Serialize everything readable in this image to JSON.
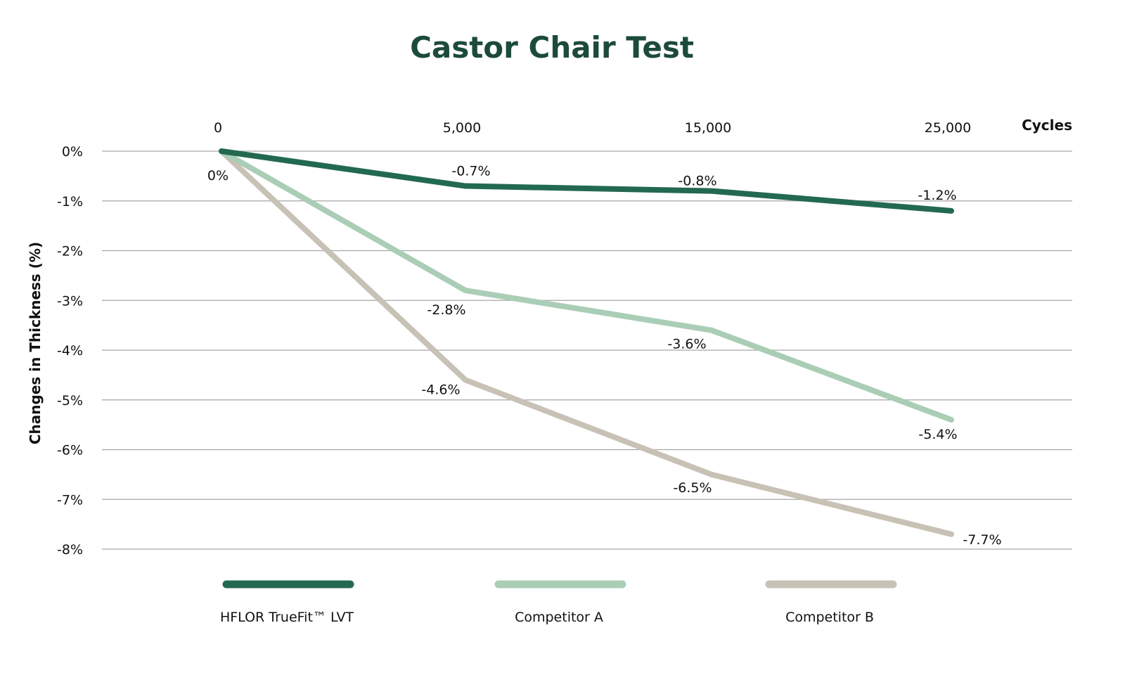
{
  "chart_data": {
    "type": "line",
    "title": "Castor Chair Test",
    "xlabel": "Cycles",
    "ylabel": "Changes in Thickness (%)",
    "categories": [
      "0",
      "5,000",
      "15,000",
      "25,000"
    ],
    "x": [
      0,
      5000,
      15000,
      25000
    ],
    "ylim": [
      -8,
      0
    ],
    "yticks": [
      "0%",
      "-1%",
      "-2%",
      "-3%",
      "-4%",
      "-5%",
      "-6%",
      "-7%",
      "-8%"
    ],
    "grid": true,
    "legend_position": "bottom",
    "series": [
      {
        "name": "HFLOR TrueFit™ LVT",
        "color": "#236950",
        "values": [
          0,
          -0.7,
          -0.8,
          -1.2
        ],
        "labels": [
          "0%",
          "-0.7%",
          "-0.8%",
          "-1.2%"
        ]
      },
      {
        "name": "Competitor A",
        "color": "#aacdb6",
        "values": [
          0,
          -2.8,
          -3.6,
          -5.4
        ],
        "labels": [
          "",
          "-2.8%",
          "-3.6%",
          "-5.4%"
        ]
      },
      {
        "name": "Competitor B",
        "color": "#c8c1b5",
        "values": [
          0,
          -4.6,
          -6.5,
          -7.7
        ],
        "labels": [
          "",
          "-4.6%",
          "-6.5%",
          "-7.7%"
        ]
      }
    ],
    "title_color": "#1c4a3b"
  }
}
